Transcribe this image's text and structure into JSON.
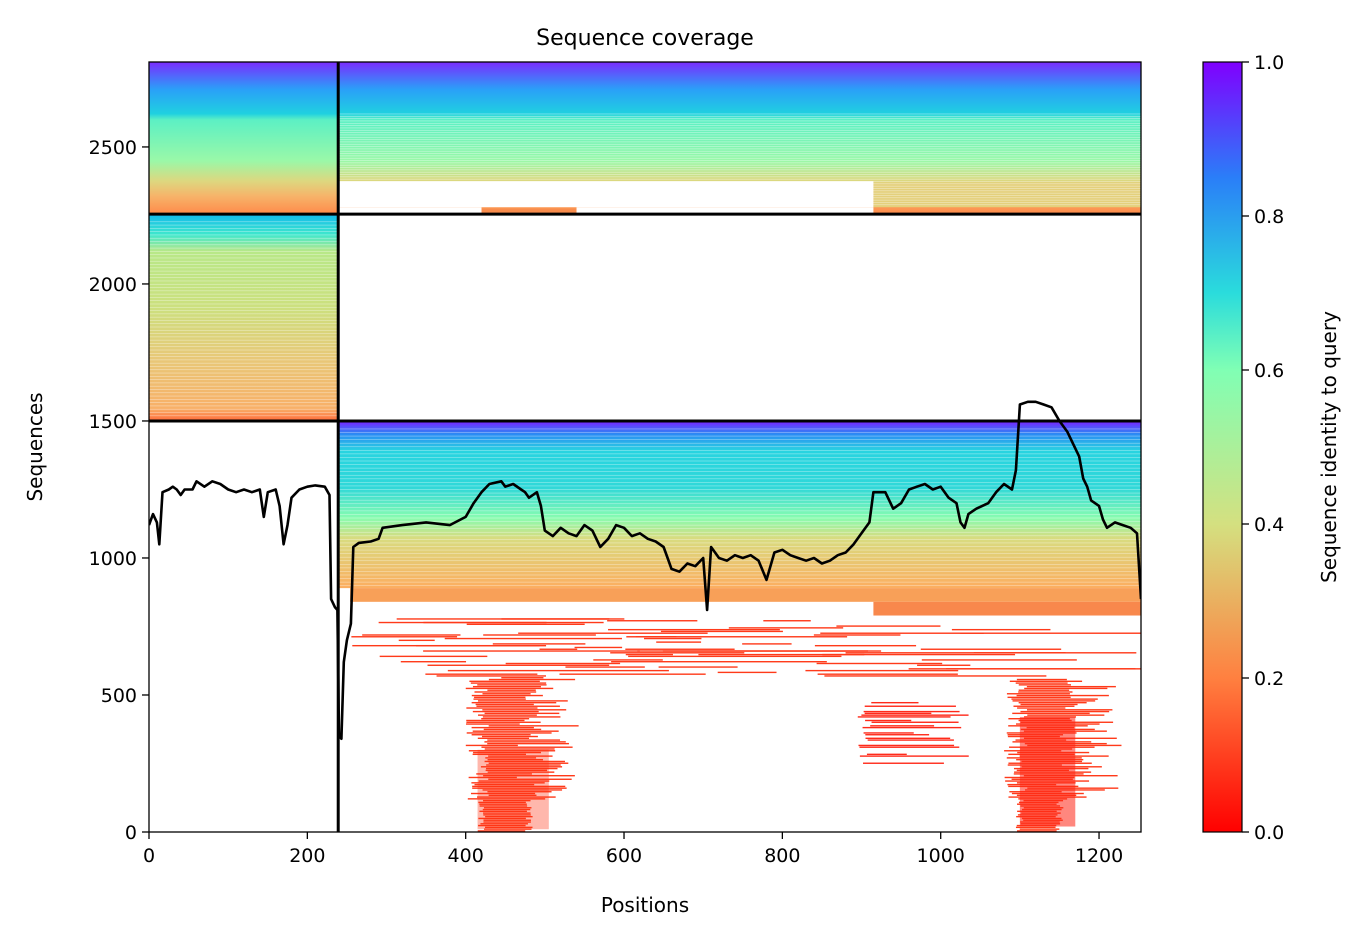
{
  "chart_data": {
    "type": "heatmap",
    "title": "Sequence coverage",
    "xlabel": "Positions",
    "ylabel": "Sequences",
    "xlim": [
      0,
      1253
    ],
    "ylim": [
      0,
      2810
    ],
    "xticks": [
      0,
      200,
      400,
      600,
      800,
      1000,
      1200
    ],
    "yticks": [
      0,
      500,
      1000,
      1500,
      2000,
      2500
    ],
    "colorbar": {
      "label": "Sequence identity to query",
      "min": 0.0,
      "max": 1.0,
      "ticks": [
        "0.0",
        "0.2",
        "0.4",
        "0.6",
        "0.8",
        "1.0"
      ],
      "colormap": "rainbow",
      "stops": [
        "#ff0000",
        "#ff8040",
        "#d4e080",
        "#80ffb4",
        "#2adcdc",
        "#2a7ef8",
        "#8000ff"
      ]
    },
    "chain_boundaries": {
      "x": [
        239
      ],
      "y": [
        1500,
        2255
      ]
    },
    "coverage_line": {
      "color": "#000000",
      "points": [
        [
          0,
          1120
        ],
        [
          5,
          1160
        ],
        [
          10,
          1130
        ],
        [
          13,
          1050
        ],
        [
          17,
          1240
        ],
        [
          25,
          1250
        ],
        [
          30,
          1260
        ],
        [
          35,
          1250
        ],
        [
          40,
          1230
        ],
        [
          45,
          1250
        ],
        [
          55,
          1250
        ],
        [
          60,
          1280
        ],
        [
          70,
          1260
        ],
        [
          80,
          1280
        ],
        [
          90,
          1270
        ],
        [
          100,
          1250
        ],
        [
          110,
          1240
        ],
        [
          120,
          1250
        ],
        [
          130,
          1240
        ],
        [
          140,
          1250
        ],
        [
          145,
          1150
        ],
        [
          150,
          1240
        ],
        [
          160,
          1250
        ],
        [
          165,
          1190
        ],
        [
          170,
          1050
        ],
        [
          175,
          1120
        ],
        [
          180,
          1220
        ],
        [
          190,
          1250
        ],
        [
          200,
          1260
        ],
        [
          210,
          1265
        ],
        [
          222,
          1260
        ],
        [
          228,
          1230
        ],
        [
          230,
          850
        ],
        [
          235,
          820
        ],
        [
          238,
          810
        ],
        [
          240,
          350
        ],
        [
          243,
          340
        ],
        [
          246,
          620
        ],
        [
          250,
          700
        ],
        [
          255,
          760
        ],
        [
          258,
          1040
        ],
        [
          265,
          1055
        ],
        [
          280,
          1060
        ],
        [
          290,
          1070
        ],
        [
          295,
          1110
        ],
        [
          320,
          1120
        ],
        [
          350,
          1130
        ],
        [
          380,
          1120
        ],
        [
          400,
          1150
        ],
        [
          410,
          1200
        ],
        [
          420,
          1240
        ],
        [
          430,
          1270
        ],
        [
          445,
          1280
        ],
        [
          450,
          1260
        ],
        [
          460,
          1270
        ],
        [
          470,
          1250
        ],
        [
          475,
          1240
        ],
        [
          480,
          1220
        ],
        [
          490,
          1240
        ],
        [
          495,
          1190
        ],
        [
          500,
          1100
        ],
        [
          510,
          1080
        ],
        [
          520,
          1110
        ],
        [
          530,
          1090
        ],
        [
          540,
          1080
        ],
        [
          550,
          1120
        ],
        [
          560,
          1100
        ],
        [
          570,
          1040
        ],
        [
          580,
          1070
        ],
        [
          590,
          1120
        ],
        [
          600,
          1110
        ],
        [
          610,
          1080
        ],
        [
          620,
          1090
        ],
        [
          630,
          1070
        ],
        [
          640,
          1060
        ],
        [
          650,
          1040
        ],
        [
          655,
          1000
        ],
        [
          660,
          960
        ],
        [
          670,
          950
        ],
        [
          680,
          980
        ],
        [
          690,
          970
        ],
        [
          700,
          1000
        ],
        [
          705,
          810
        ],
        [
          710,
          1040
        ],
        [
          720,
          1000
        ],
        [
          730,
          990
        ],
        [
          740,
          1010
        ],
        [
          750,
          1000
        ],
        [
          760,
          1010
        ],
        [
          770,
          990
        ],
        [
          780,
          920
        ],
        [
          790,
          1020
        ],
        [
          800,
          1030
        ],
        [
          810,
          1010
        ],
        [
          820,
          1000
        ],
        [
          830,
          990
        ],
        [
          840,
          1000
        ],
        [
          850,
          980
        ],
        [
          860,
          990
        ],
        [
          870,
          1010
        ],
        [
          880,
          1020
        ],
        [
          890,
          1050
        ],
        [
          900,
          1090
        ],
        [
          910,
          1130
        ],
        [
          915,
          1240
        ],
        [
          930,
          1240
        ],
        [
          940,
          1180
        ],
        [
          950,
          1200
        ],
        [
          960,
          1250
        ],
        [
          970,
          1260
        ],
        [
          980,
          1270
        ],
        [
          990,
          1250
        ],
        [
          1000,
          1260
        ],
        [
          1010,
          1220
        ],
        [
          1020,
          1200
        ],
        [
          1025,
          1130
        ],
        [
          1030,
          1110
        ],
        [
          1035,
          1160
        ],
        [
          1045,
          1180
        ],
        [
          1060,
          1200
        ],
        [
          1070,
          1240
        ],
        [
          1080,
          1270
        ],
        [
          1090,
          1250
        ],
        [
          1095,
          1320
        ],
        [
          1100,
          1560
        ],
        [
          1110,
          1570
        ],
        [
          1120,
          1570
        ],
        [
          1130,
          1560
        ],
        [
          1140,
          1550
        ],
        [
          1150,
          1500
        ],
        [
          1160,
          1460
        ],
        [
          1170,
          1400
        ],
        [
          1175,
          1370
        ],
        [
          1180,
          1290
        ],
        [
          1185,
          1260
        ],
        [
          1190,
          1210
        ],
        [
          1200,
          1190
        ],
        [
          1205,
          1140
        ],
        [
          1210,
          1110
        ],
        [
          1220,
          1130
        ],
        [
          1230,
          1120
        ],
        [
          1240,
          1110
        ],
        [
          1248,
          1090
        ],
        [
          1253,
          850
        ]
      ]
    }
  }
}
